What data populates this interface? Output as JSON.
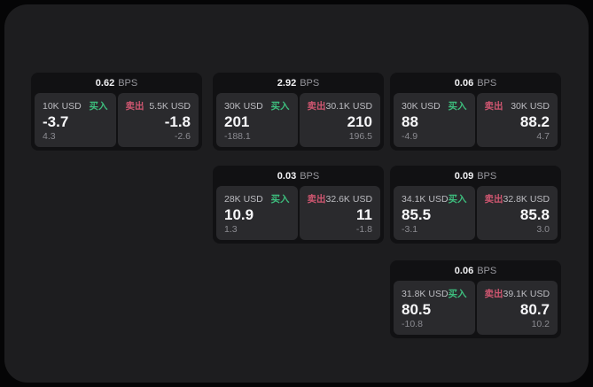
{
  "labels": {
    "bps_unit": "BPS",
    "buy": "买入",
    "sell": "卖出"
  },
  "colors": {
    "buy": "#3dbd7d",
    "sell": "#cf5670",
    "window_bg": "#1d1d1f",
    "card_bg": "#111113",
    "panel_bg": "#2a2a2d"
  },
  "cards": [
    {
      "bps": "0.62",
      "buy": {
        "amount": "10K USD",
        "price": "-3.7",
        "delta": "4.3"
      },
      "sell": {
        "amount": "5.5K USD",
        "price": "-1.8",
        "delta": "-2.6"
      }
    },
    {
      "bps": "2.92",
      "buy": {
        "amount": "30K USD",
        "price": "201",
        "delta": "-188.1"
      },
      "sell": {
        "amount": "30.1K USD",
        "price": "210",
        "delta": "196.5"
      }
    },
    {
      "bps": "0.06",
      "buy": {
        "amount": "30K USD",
        "price": "88",
        "delta": "-4.9"
      },
      "sell": {
        "amount": "30K USD",
        "price": "88.2",
        "delta": "4.7"
      }
    },
    {
      "bps": "0.03",
      "buy": {
        "amount": "28K USD",
        "price": "10.9",
        "delta": "1.3"
      },
      "sell": {
        "amount": "32.6K USD",
        "price": "11",
        "delta": "-1.8"
      }
    },
    {
      "bps": "0.09",
      "buy": {
        "amount": "34.1K USD",
        "price": "85.5",
        "delta": "-3.1"
      },
      "sell": {
        "amount": "32.8K USD",
        "price": "85.8",
        "delta": "3.0"
      }
    },
    {
      "bps": "0.06",
      "buy": {
        "amount": "31.8K USD",
        "price": "80.5",
        "delta": "-10.8"
      },
      "sell": {
        "amount": "39.1K USD",
        "price": "80.7",
        "delta": "10.2"
      }
    }
  ]
}
